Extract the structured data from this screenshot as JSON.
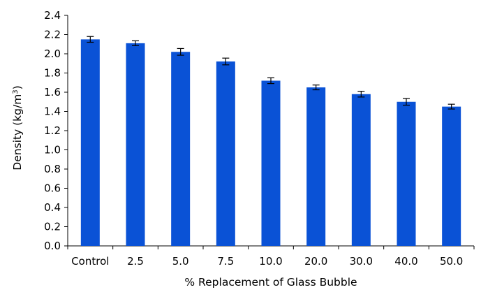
{
  "chart_data": {
    "type": "bar",
    "title": "",
    "xlabel": "% Replacement of Glass Bubble",
    "ylabel": {
      "text": "Density (kg/m",
      "sup": "3",
      "close": ")"
    },
    "categories": [
      "Control",
      "2.5",
      "5.0",
      "7.5",
      "10.0",
      "20.0",
      "30.0",
      "40.0",
      "50.0"
    ],
    "series": [
      {
        "values": [
          2.15,
          2.11,
          2.02,
          1.92,
          1.72,
          1.65,
          1.58,
          1.5,
          1.45
        ],
        "errors": [
          0.03,
          0.025,
          0.035,
          0.035,
          0.03,
          0.025,
          0.03,
          0.035,
          0.025
        ]
      }
    ],
    "ylim": [
      0.0,
      2.4
    ],
    "yticks": [
      "0.0",
      "0.2",
      "0.4",
      "0.6",
      "0.8",
      "1.0",
      "1.2",
      "1.4",
      "1.6",
      "1.8",
      "2.0",
      "2.2",
      "2.4"
    ],
    "grid": false,
    "legend": "none",
    "bar_color": "#0a52d6",
    "error_bar_color": "#000000"
  }
}
